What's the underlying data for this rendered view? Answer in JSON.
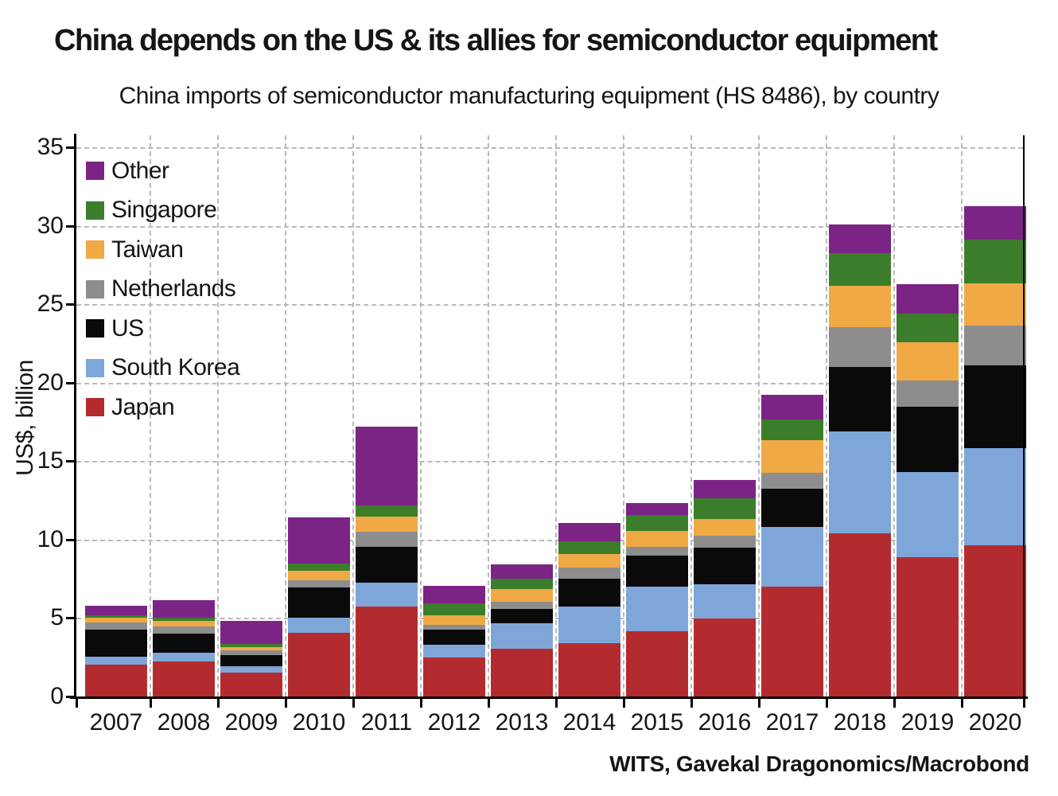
{
  "chart_data": {
    "type": "bar",
    "stacked": true,
    "title": "China depends on the US & its allies for semiconductor equipment",
    "subtitle": "China imports of semiconductor manufacturing equipment (HS 8486), by country",
    "ylabel": "US$, billion",
    "source": "WITS, Gavekal Dragonomics/Macrobond",
    "ylim": [
      0,
      35
    ],
    "yticks": [
      0,
      5,
      10,
      15,
      20,
      25,
      30,
      35
    ],
    "grid": "dashed horizontal gridlines at each 5, dashed vertical gridlines between year slots",
    "legend_position": "upper left inside plot, vertical list",
    "categories": [
      "2007",
      "2008",
      "2009",
      "2010",
      "2011",
      "2012",
      "2013",
      "2014",
      "2015",
      "2016",
      "2017",
      "2018",
      "2019",
      "2020"
    ],
    "series": [
      {
        "name": "Japan",
        "color": "#b42b2f",
        "values": [
          2.05,
          2.25,
          1.5,
          4.05,
          5.75,
          2.5,
          3.05,
          3.4,
          4.15,
          4.95,
          7.0,
          10.4,
          8.9,
          9.65
        ]
      },
      {
        "name": "South Korea",
        "color": "#7fa6d9",
        "values": [
          0.5,
          0.55,
          0.45,
          0.95,
          1.5,
          0.8,
          1.6,
          2.35,
          2.85,
          2.2,
          3.8,
          6.5,
          5.4,
          6.2
        ]
      },
      {
        "name": "US",
        "color": "#0a0a0a",
        "values": [
          1.7,
          1.2,
          0.7,
          1.95,
          2.3,
          0.95,
          0.95,
          1.75,
          2.0,
          2.35,
          2.45,
          4.1,
          4.15,
          5.25
        ]
      },
      {
        "name": "Netherlands",
        "color": "#8d8d8d",
        "values": [
          0.45,
          0.45,
          0.3,
          0.45,
          0.95,
          0.3,
          0.45,
          0.7,
          0.55,
          0.75,
          1.0,
          2.55,
          1.7,
          2.55
        ]
      },
      {
        "name": "Taiwan",
        "color": "#f0a944",
        "values": [
          0.3,
          0.35,
          0.2,
          0.6,
          0.95,
          0.6,
          0.8,
          0.9,
          1.0,
          1.05,
          2.1,
          2.6,
          2.4,
          2.7
        ]
      },
      {
        "name": "Singapore",
        "color": "#3b7d2a",
        "values": [
          0.2,
          0.2,
          0.2,
          0.45,
          0.75,
          0.8,
          0.65,
          0.8,
          1.0,
          1.35,
          1.3,
          2.1,
          1.85,
          2.75
        ]
      },
      {
        "name": "Other",
        "color": "#7b2486",
        "values": [
          0.6,
          1.15,
          1.45,
          2.95,
          5.0,
          1.1,
          0.9,
          1.15,
          0.8,
          1.15,
          1.6,
          1.85,
          1.9,
          2.15
        ]
      }
    ],
    "legend": [
      {
        "label": "Other",
        "color": "#7b2486"
      },
      {
        "label": "Singapore",
        "color": "#3b7d2a"
      },
      {
        "label": "Taiwan",
        "color": "#f0a944"
      },
      {
        "label": "Netherlands",
        "color": "#8d8d8d"
      },
      {
        "label": "US",
        "color": "#0a0a0a"
      },
      {
        "label": "South Korea",
        "color": "#7fa6d9"
      },
      {
        "label": "Japan",
        "color": "#b42b2f"
      }
    ]
  }
}
